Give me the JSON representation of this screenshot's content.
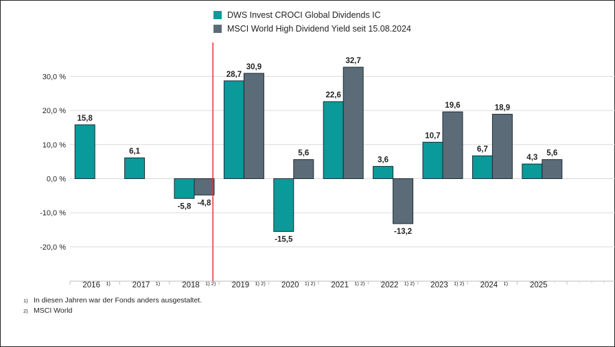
{
  "colors": {
    "fund": "#0a9a9a",
    "index": "#5c6b78",
    "divider": "#e23030",
    "grid": "#d9d9d9"
  },
  "legend": [
    {
      "label": "DWS Invest CROCI Global Dividends IC",
      "color": "#0a9a9a"
    },
    {
      "label": "MSCI World High Dividend Yield seit 15.08.2024",
      "color": "#5c6b78"
    }
  ],
  "chart_data": {
    "type": "bar",
    "categories": [
      "2016",
      "2017",
      "2018",
      "2019",
      "2020",
      "2021",
      "2022",
      "2023",
      "2024",
      "2025"
    ],
    "category_notes": [
      "1)",
      "1)",
      "1) 2)",
      "1) 2)",
      "1) 2)",
      "1) 2)",
      "1) 2)",
      "1) 2)",
      "1)",
      ""
    ],
    "series": [
      {
        "name": "DWS Invest CROCI Global Dividends IC",
        "values": [
          15.8,
          6.1,
          -5.8,
          28.7,
          -15.5,
          22.6,
          3.6,
          10.7,
          6.7,
          4.3
        ],
        "labels": [
          "15,8",
          "6,1",
          "-5,8",
          "28,7",
          "-15,5",
          "22,6",
          "3,6",
          "10,7",
          "6,7",
          "4,3"
        ]
      },
      {
        "name": "MSCI World High Dividend Yield seit 15.08.2024",
        "values": [
          null,
          null,
          -4.8,
          30.9,
          5.6,
          32.7,
          -13.2,
          19.6,
          18.9,
          5.6
        ],
        "labels": [
          "",
          "",
          "-4,8",
          "30,9",
          "5,6",
          "32,7",
          "-13,2",
          "19,6",
          "18,9",
          "5,6"
        ]
      }
    ],
    "yticks": [
      -20,
      -10,
      0,
      10,
      20,
      30
    ],
    "ytick_labels": [
      "-20,0 %",
      "-10,0 %",
      "0,0 %",
      "10,0 %",
      "20,0 %",
      "30,0 %"
    ],
    "ylim": [
      -30,
      40
    ],
    "grid": true,
    "divider_between": [
      "2018",
      "2019"
    ]
  },
  "footnotes": [
    {
      "mark": "1)",
      "text": "In diesen Jahren war der Fonds anders ausgestaltet."
    },
    {
      "mark": "2)",
      "text": "MSCI World"
    }
  ]
}
